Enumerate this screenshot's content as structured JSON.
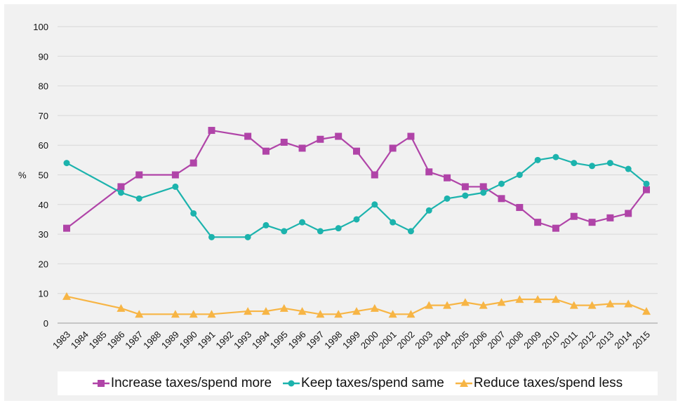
{
  "chart_data": {
    "type": "line",
    "title": "",
    "xlabel": "",
    "ylabel": "%",
    "ylim": [
      0,
      100
    ],
    "yticks": [
      0,
      10,
      20,
      30,
      40,
      50,
      60,
      70,
      80,
      90,
      100
    ],
    "grid": "horizontal",
    "legend_position": "bottom",
    "categories": [
      "1983",
      "1984",
      "1985",
      "1986",
      "1987",
      "1988",
      "1989",
      "1990",
      "1991",
      "1992",
      "1993",
      "1994",
      "1995",
      "1996",
      "1997",
      "1998",
      "1999",
      "2000",
      "2001",
      "2002",
      "2003",
      "2004",
      "2005",
      "2006",
      "2007",
      "2008",
      "2009",
      "2010",
      "2011",
      "2012",
      "2013",
      "2014",
      "2015"
    ],
    "series": [
      {
        "name": "Increase taxes/spend more",
        "color": "#b044a8",
        "marker": "square",
        "values": [
          32,
          null,
          null,
          46,
          50,
          null,
          50,
          54,
          65,
          null,
          63,
          58,
          61,
          59,
          62,
          63,
          58,
          50,
          59,
          63,
          51,
          49,
          46,
          46,
          42,
          39,
          34,
          32,
          36,
          34,
          35.5,
          37,
          45
        ]
      },
      {
        "name": "Keep taxes/spend same",
        "color": "#1cb3ad",
        "marker": "circle",
        "values": [
          54,
          null,
          null,
          44,
          42,
          null,
          46,
          37,
          29,
          null,
          29,
          33,
          31,
          34,
          31,
          32,
          35,
          40,
          34,
          31,
          38,
          42,
          43,
          44,
          47,
          50,
          55,
          56,
          54,
          53,
          54,
          52,
          47
        ]
      },
      {
        "name": "Reduce taxes/spend less",
        "color": "#f7b545",
        "marker": "triangle",
        "values": [
          9,
          null,
          null,
          5,
          3,
          null,
          3,
          3,
          3,
          null,
          4,
          4,
          5,
          4,
          3,
          3,
          4,
          5,
          3,
          3,
          6,
          6,
          7,
          6,
          7,
          8,
          8,
          8,
          6,
          6,
          6.5,
          6.5,
          4
        ]
      }
    ]
  }
}
